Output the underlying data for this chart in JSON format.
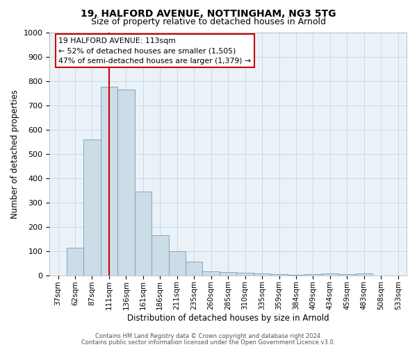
{
  "title1": "19, HALFORD AVENUE, NOTTINGHAM, NG3 5TG",
  "title2": "Size of property relative to detached houses in Arnold",
  "xlabel": "Distribution of detached houses by size in Arnold",
  "ylabel": "Number of detached properties",
  "bin_labels": [
    "37sqm",
    "62sqm",
    "87sqm",
    "111sqm",
    "136sqm",
    "161sqm",
    "186sqm",
    "211sqm",
    "235sqm",
    "260sqm",
    "285sqm",
    "310sqm",
    "335sqm",
    "359sqm",
    "384sqm",
    "409sqm",
    "434sqm",
    "459sqm",
    "483sqm",
    "508sqm",
    "533sqm"
  ],
  "bar_heights": [
    0,
    112,
    560,
    775,
    765,
    345,
    165,
    98,
    55,
    15,
    12,
    10,
    8,
    5,
    3,
    5,
    8,
    5,
    7,
    0,
    0
  ],
  "bar_color": "#ccdde8",
  "bar_edge_color": "#7799bb",
  "grid_color": "#c8d8e8",
  "red_line_x": 3.0,
  "annotation_text": "19 HALFORD AVENUE: 113sqm\n← 52% of detached houses are smaller (1,505)\n47% of semi-detached houses are larger (1,379) →",
  "annotation_box_color": "#ffffff",
  "annotation_box_edge": "#cc0000",
  "ylim": [
    0,
    1000
  ],
  "yticks": [
    0,
    100,
    200,
    300,
    400,
    500,
    600,
    700,
    800,
    900,
    1000
  ],
  "footnote1": "Contains HM Land Registry data © Crown copyright and database right 2024.",
  "footnote2": "Contains public sector information licensed under the Open Government Licence v3.0."
}
